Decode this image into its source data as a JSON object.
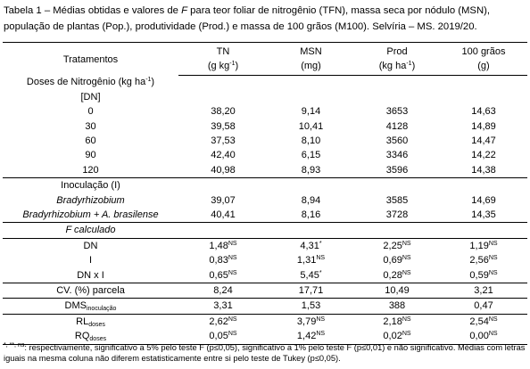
{
  "caption": {
    "before": "Tabela 1 – Médias obtidas e valores de ",
    "italic": "F",
    "after": " para teor foliar de nitrogênio (TFN), massa seca por nódulo (MSN), população de plantas (Pop.), produtividade (Prod.) e massa de 100 grãos (M100). Selvíria – MS. 2019/20."
  },
  "table": {
    "header": [
      {
        "title": "Tratamentos"
      },
      {
        "title": "TN",
        "unit": {
          "text": "(g kg",
          "sup": "-1",
          "end": ")"
        }
      },
      {
        "title": "MSN",
        "unit": {
          "text": "(mg)"
        }
      },
      {
        "title": "Prod",
        "unit": {
          "text": "(kg ha",
          "sup": "-1",
          "end": ")"
        }
      },
      {
        "title": "100 grãos",
        "unit": {
          "text": "(g)"
        }
      }
    ],
    "groups": [
      [
        [
          {
            "text": "Doses de Nitrogênio (kg ha",
            "sup": "-1",
            "end": ")",
            "line2": "[DN]"
          }
        ],
        [
          {
            "text": "0"
          },
          {
            "text": "38,20"
          },
          {
            "text": "9,14"
          },
          {
            "text": "3653"
          },
          {
            "text": "14,63"
          }
        ],
        [
          {
            "text": "30"
          },
          {
            "text": "39,58"
          },
          {
            "text": "10,41"
          },
          {
            "text": "4128"
          },
          {
            "text": "14,89"
          }
        ],
        [
          {
            "text": "60"
          },
          {
            "text": "37,53"
          },
          {
            "text": "8,10"
          },
          {
            "text": "3560"
          },
          {
            "text": "14,47"
          }
        ],
        [
          {
            "text": "90"
          },
          {
            "text": "42,40"
          },
          {
            "text": "6,15"
          },
          {
            "text": "3346"
          },
          {
            "text": "14,22"
          }
        ],
        [
          {
            "text": "120"
          },
          {
            "text": "40,98"
          },
          {
            "text": "8,93"
          },
          {
            "text": "3596"
          },
          {
            "text": "14,38"
          }
        ]
      ],
      [
        [
          {
            "text": "Inoculação (I)"
          }
        ],
        [
          {
            "text": "Bradyrhizobium",
            "italic": true
          },
          {
            "text": "39,07"
          },
          {
            "text": "8,94"
          },
          {
            "text": "3585"
          },
          {
            "text": "14,69"
          }
        ],
        [
          {
            "text": "Bradyrhizobium + A. brasilense",
            "italic": true
          },
          {
            "text": "40,41"
          },
          {
            "text": "8,16"
          },
          {
            "text": "3728"
          },
          {
            "text": "14,35"
          }
        ]
      ],
      [
        [
          {
            "text": "F calculado",
            "italic": true
          }
        ]
      ],
      [
        [
          {
            "text": "DN"
          },
          {
            "text": "1,48",
            "sup": "NS"
          },
          {
            "text": "4,31",
            "sup": "*"
          },
          {
            "text": "2,25",
            "sup": "NS"
          },
          {
            "text": "1,19",
            "sup": "NS"
          }
        ],
        [
          {
            "text": "I"
          },
          {
            "text": "0,83",
            "sup": "NS"
          },
          {
            "text": "1,31",
            "sup": "NS"
          },
          {
            "text": "0,69",
            "sup": "NS"
          },
          {
            "text": "2,56",
            "sup": "NS"
          }
        ],
        [
          {
            "text": "DN x I"
          },
          {
            "text": "0,65",
            "sup": "NS"
          },
          {
            "text": "5,45",
            "sup": "*"
          },
          {
            "text": "0,28",
            "sup": "NS"
          },
          {
            "text": "0,59",
            "sup": "NS"
          }
        ]
      ],
      [
        [
          {
            "text": "CV. (%) parcela"
          },
          {
            "text": "8,24"
          },
          {
            "text": "17,71"
          },
          {
            "text": "10,49"
          },
          {
            "text": "3,21"
          }
        ]
      ],
      [
        [
          {
            "text": "DMS",
            "sub": "inoculação"
          },
          {
            "text": "3,31"
          },
          {
            "text": "1,53"
          },
          {
            "text": "388"
          },
          {
            "text": "0,47"
          }
        ]
      ],
      [
        [
          {
            "text": "RL",
            "sub": "doses"
          },
          {
            "text": "2,62",
            "sup": "NS"
          },
          {
            "text": "3,79",
            "sup": "NS"
          },
          {
            "text": "2,18",
            "sup": "NS"
          },
          {
            "text": "2,54",
            "sup": "NS"
          }
        ],
        [
          {
            "text": "RQ",
            "sub": "doses"
          },
          {
            "text": "0,05",
            "sup": "NS"
          },
          {
            "text": "1,42",
            "sup": "NS"
          },
          {
            "text": "0,02",
            "sup": "NS"
          },
          {
            "text": "0,00",
            "sup": "NS"
          }
        ]
      ]
    ]
  },
  "footnote": {
    "sup": "*, **, ns",
    "text": ": respectivamente, significativo a 5% pelo teste F (p≤0,05), significativo a 1% pelo teste F (p≤0,01) e não significativo. Médias com letras iguais na mesma coluna não diferem estatisticamente entre si pelo teste de Tukey (p≤0,05)."
  }
}
